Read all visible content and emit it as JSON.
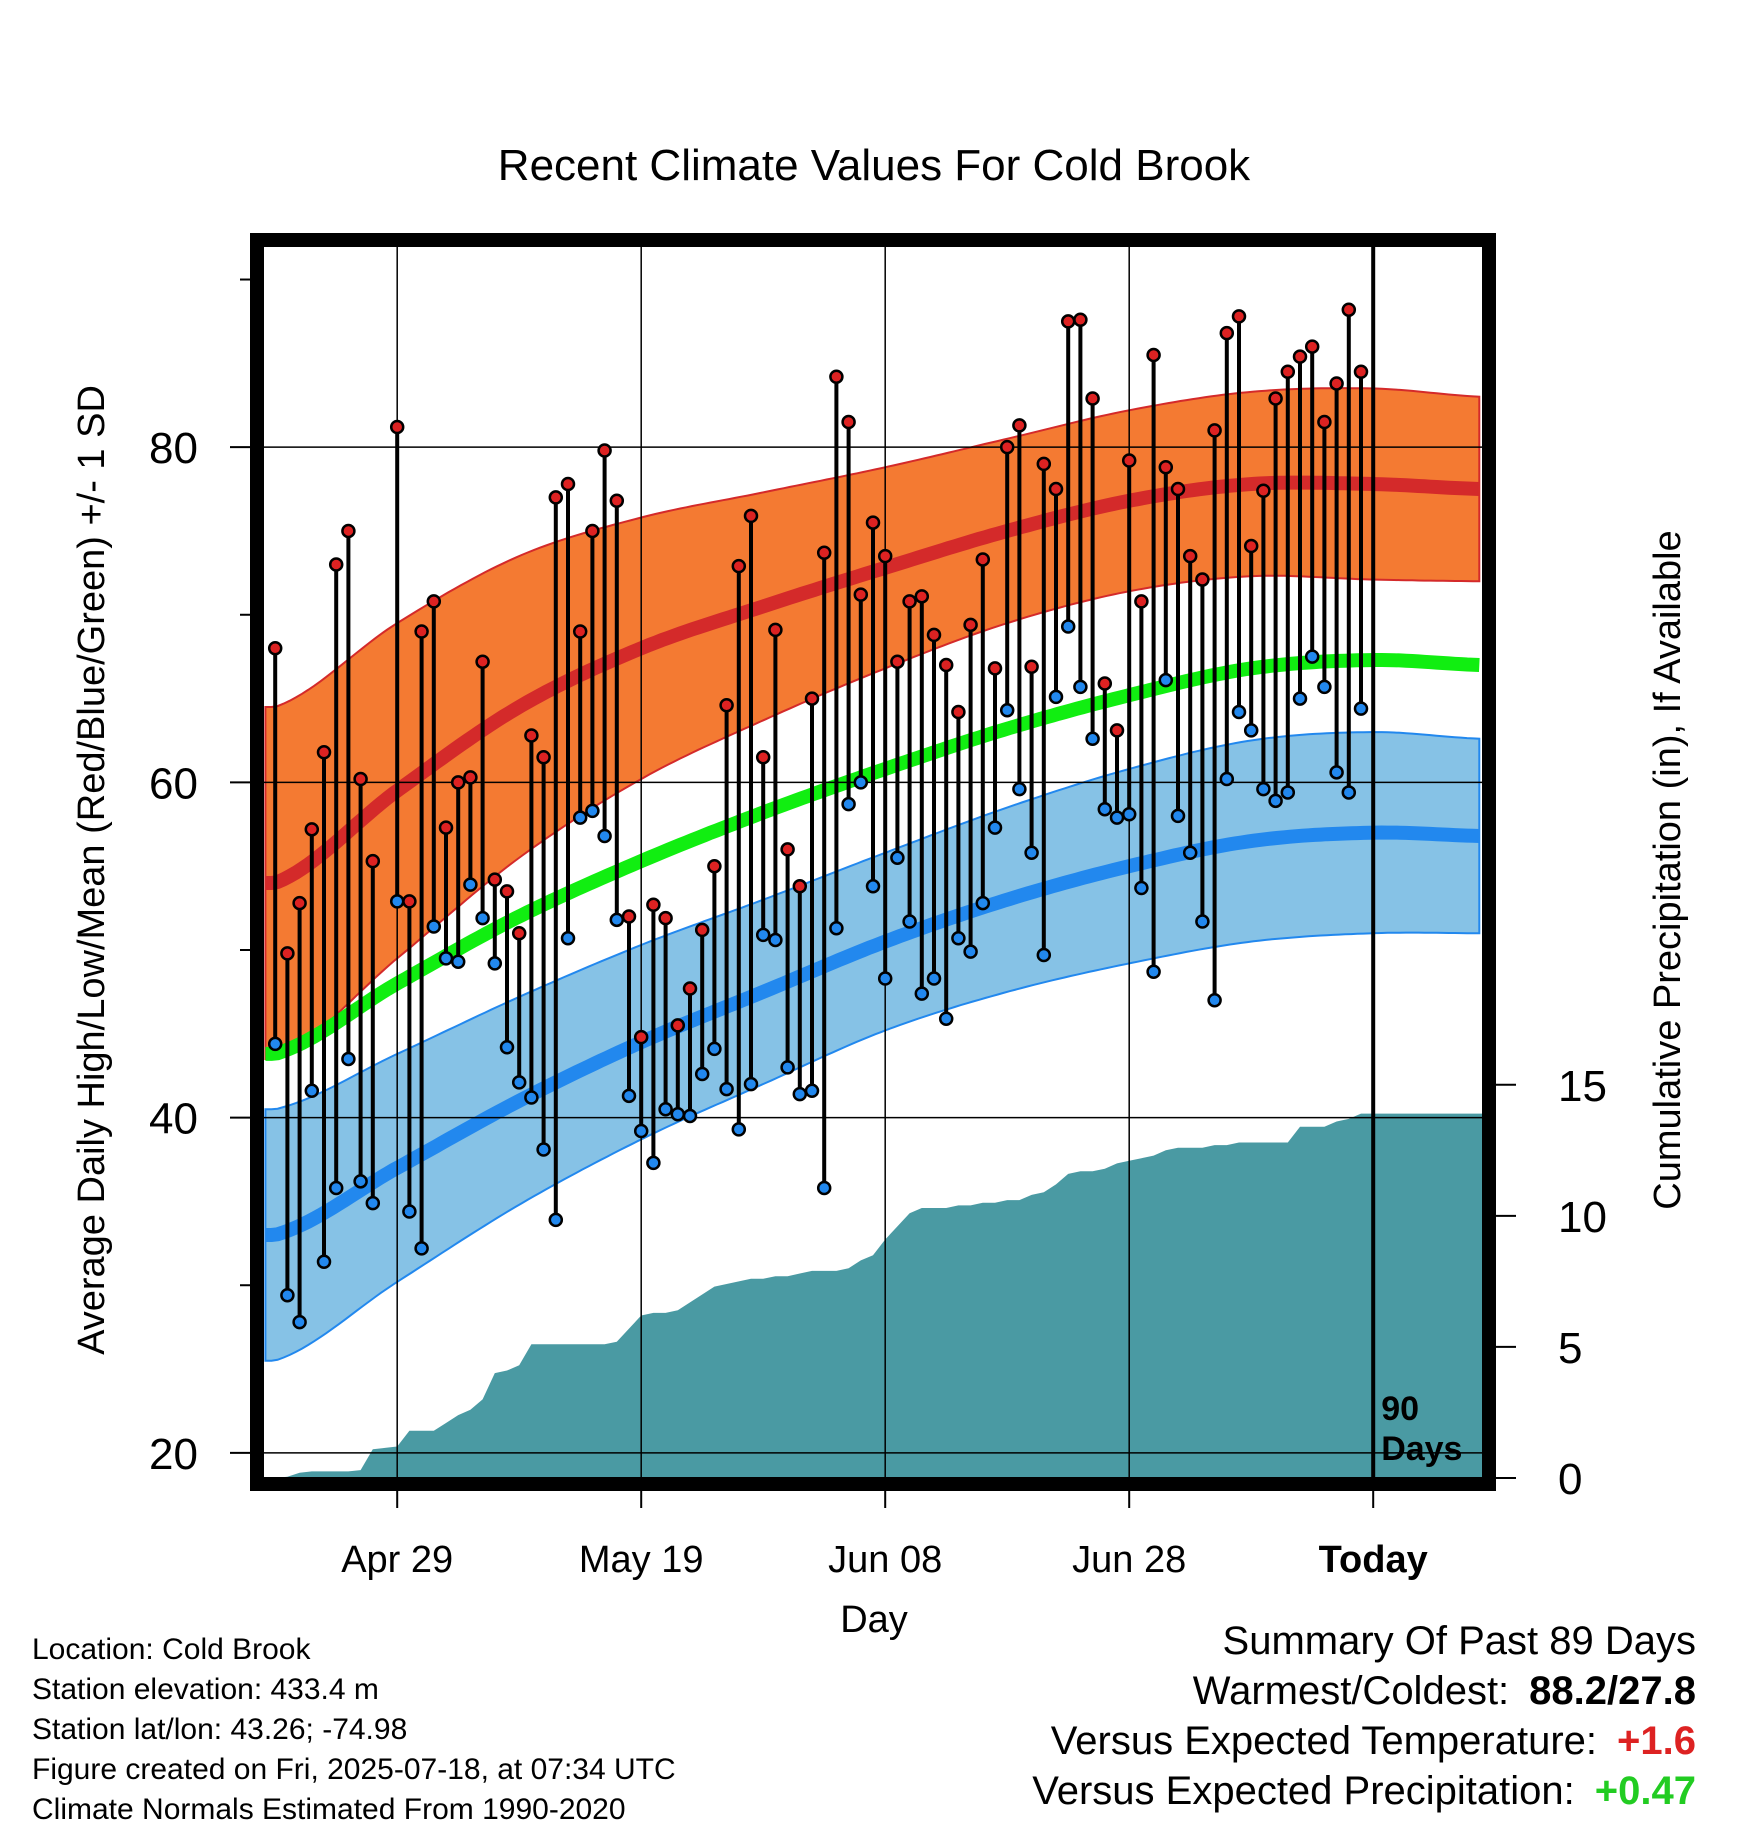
{
  "chart_data": {
    "type": "line",
    "title": "Recent Climate Values For Cold Brook",
    "xlabel": "Day",
    "ylabel": "Average Daily High/Low/Mean (Red/Blue/Green) +/- 1 SD",
    "y2label": "Cumulative Precipitation (in), If Available",
    "ylim": [
      18.5,
      92
    ],
    "y2lim": [
      0,
      47
    ],
    "x_tick_labels": [
      "Apr 29",
      "May 19",
      "Jun 08",
      "Jun 28",
      "Today"
    ],
    "x_tick_days": [
      10,
      30,
      50,
      70,
      90
    ],
    "y_ticks": [
      20,
      40,
      60,
      80
    ],
    "y_minor_ticks": [
      30,
      50,
      70,
      90
    ],
    "y2_ticks": [
      0,
      5,
      10,
      15
    ],
    "today_label": "90 Days",
    "grid": true,
    "xlim": [
      -1,
      99
    ],
    "normals": {
      "days": [
        0,
        10,
        20,
        30,
        40,
        50,
        60,
        70,
        80,
        90,
        99
      ],
      "high_mean": [
        54.0,
        59.5,
        64.5,
        68.0,
        70.5,
        72.8,
        75.0,
        76.8,
        77.8,
        77.8,
        77.5
      ],
      "high_sd": [
        10.5,
        10.0,
        9.0,
        7.8,
        6.8,
        6.0,
        5.5,
        5.4,
        5.5,
        5.7,
        5.5
      ],
      "low_mean": [
        33.0,
        37.0,
        41.0,
        44.5,
        47.5,
        50.5,
        53.0,
        55.0,
        56.5,
        57.0,
        56.8
      ],
      "low_sd": [
        7.5,
        6.8,
        6.2,
        5.8,
        5.5,
        5.3,
        5.5,
        5.8,
        6.0,
        6.0,
        5.8
      ],
      "mean": [
        43.8,
        48.0,
        52.0,
        55.3,
        58.2,
        60.8,
        63.2,
        65.2,
        66.8,
        67.3,
        67.0
      ]
    },
    "daily": {
      "days": [
        0,
        1,
        2,
        3,
        4,
        5,
        6,
        7,
        8,
        9,
        10,
        11,
        12,
        13,
        14,
        15,
        16,
        17,
        18,
        19,
        20,
        21,
        22,
        23,
        24,
        25,
        26,
        27,
        28,
        29,
        30,
        31,
        32,
        33,
        34,
        35,
        36,
        37,
        38,
        39,
        40,
        41,
        42,
        43,
        44,
        45,
        46,
        47,
        48,
        49,
        50,
        51,
        52,
        53,
        54,
        55,
        56,
        57,
        58,
        59,
        60,
        61,
        62,
        63,
        64,
        65,
        66,
        67,
        68,
        69,
        70,
        71,
        72,
        73,
        74,
        75,
        76,
        77,
        78,
        79,
        80,
        81,
        82,
        83,
        84,
        85,
        86,
        87,
        88,
        89
      ],
      "high": [
        68.0,
        49.8,
        52.8,
        57.2,
        61.8,
        73.0,
        75.0,
        60.2,
        55.3,
        null,
        81.2,
        52.9,
        69.0,
        70.8,
        57.3,
        60.0,
        60.3,
        67.2,
        54.2,
        53.5,
        51.0,
        62.8,
        61.5,
        77.0,
        77.8,
        69.0,
        75.0,
        79.8,
        76.8,
        52.0,
        44.8,
        52.7,
        51.9,
        45.5,
        47.7,
        51.2,
        55.0,
        64.6,
        72.9,
        75.9,
        61.5,
        69.1,
        56.0,
        53.8,
        65.0,
        73.7,
        84.2,
        81.5,
        71.2,
        75.5,
        73.5,
        67.2,
        70.8,
        71.1,
        68.8,
        67.0,
        64.2,
        69.4,
        73.3,
        66.8,
        80.0,
        81.3,
        66.9,
        79.0,
        77.5,
        87.5,
        87.6,
        82.9,
        65.9,
        63.1,
        79.2,
        70.8,
        85.5,
        78.8,
        77.5,
        73.5,
        72.1,
        81.0,
        86.8,
        87.8,
        74.1,
        77.4,
        82.9,
        84.5,
        85.4,
        86.0,
        81.5,
        83.8,
        88.2,
        84.5
      ],
      "low": [
        44.4,
        29.4,
        27.8,
        41.6,
        31.4,
        35.8,
        43.5,
        36.2,
        34.9,
        null,
        52.9,
        34.4,
        32.2,
        51.4,
        49.5,
        49.3,
        53.9,
        51.9,
        49.2,
        44.2,
        42.1,
        41.2,
        38.1,
        33.9,
        50.7,
        57.9,
        58.3,
        56.8,
        51.8,
        41.3,
        39.2,
        37.3,
        40.5,
        40.2,
        40.1,
        42.6,
        44.1,
        41.7,
        39.3,
        42.0,
        50.9,
        50.6,
        43.0,
        41.4,
        41.6,
        35.8,
        51.3,
        58.7,
        60.0,
        53.8,
        48.3,
        55.5,
        51.7,
        47.4,
        48.3,
        45.9,
        50.7,
        49.9,
        52.8,
        57.3,
        64.3,
        59.6,
        55.8,
        49.7,
        65.1,
        69.3,
        65.7,
        62.6,
        58.4,
        57.9,
        58.1,
        53.7,
        48.7,
        66.1,
        58.0,
        55.8,
        51.7,
        47.0,
        60.2,
        64.2,
        63.1,
        59.6,
        58.9,
        59.4,
        65.0,
        67.5,
        65.7,
        60.6,
        59.4,
        64.4
      ]
    },
    "precip": {
      "days": [
        0,
        1,
        2,
        3,
        4,
        5,
        6,
        7,
        8,
        9,
        10,
        11,
        12,
        13,
        14,
        15,
        16,
        17,
        18,
        19,
        20,
        21,
        22,
        23,
        24,
        25,
        26,
        27,
        28,
        29,
        30,
        31,
        32,
        33,
        34,
        35,
        36,
        37,
        38,
        39,
        40,
        41,
        42,
        43,
        44,
        45,
        46,
        47,
        48,
        49,
        50,
        51,
        52,
        53,
        54,
        55,
        56,
        57,
        58,
        59,
        60,
        61,
        62,
        63,
        64,
        65,
        66,
        67,
        68,
        69,
        70,
        71,
        72,
        73,
        74,
        75,
        76,
        77,
        78,
        79,
        80,
        81,
        82,
        83,
        84,
        85,
        86,
        87,
        88,
        89,
        90,
        99
      ],
      "cumulative": [
        0.0,
        0.05,
        0.2,
        0.25,
        0.25,
        0.25,
        0.25,
        0.3,
        1.1,
        1.15,
        1.2,
        1.8,
        1.8,
        1.8,
        2.1,
        2.4,
        2.6,
        3.0,
        4.0,
        4.1,
        4.3,
        5.1,
        5.1,
        5.1,
        5.1,
        5.1,
        5.1,
        5.1,
        5.2,
        5.7,
        6.2,
        6.3,
        6.3,
        6.4,
        6.7,
        7.0,
        7.3,
        7.4,
        7.5,
        7.6,
        7.6,
        7.7,
        7.7,
        7.8,
        7.9,
        7.9,
        7.9,
        8.0,
        8.3,
        8.5,
        9.1,
        9.6,
        10.1,
        10.3,
        10.3,
        10.3,
        10.4,
        10.4,
        10.5,
        10.5,
        10.6,
        10.6,
        10.8,
        10.9,
        11.2,
        11.6,
        11.7,
        11.7,
        11.8,
        12.0,
        12.1,
        12.2,
        12.3,
        12.5,
        12.6,
        12.6,
        12.6,
        12.7,
        12.7,
        12.8,
        12.8,
        12.8,
        12.8,
        12.8,
        13.4,
        13.4,
        13.4,
        13.6,
        13.7,
        13.9,
        13.9,
        13.9
      ]
    }
  },
  "info": {
    "location": "Location: Cold Brook",
    "elevation": "Station elevation: 433.4 m",
    "latlon": "Station lat/lon: 43.26; -74.98",
    "created": "Figure created on Fri, 2025-07-18, at 07:34 UTC",
    "normals": "Climate Normals Estimated From 1990-2020"
  },
  "summary": {
    "title": "Summary Of Past 89 Days",
    "warmest_label": "Warmest/Coldest:",
    "warmest_value": "88.2/27.8",
    "temp_label": "Versus Expected Temperature:",
    "temp_value": "+1.6",
    "precip_label": "Versus Expected Precipitation:",
    "precip_value": "+0.47",
    "colors": {
      "temp_value": "#dd2222",
      "precip_value": "#22cc22"
    }
  }
}
